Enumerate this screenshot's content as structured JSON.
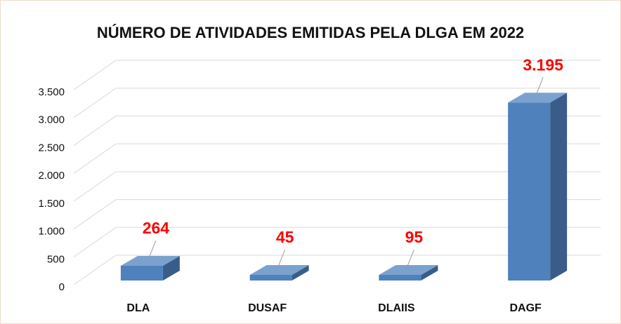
{
  "chart_data": {
    "type": "bar3d",
    "title": "NÚMERO DE ATIVIDADES EMITIDAS PELA DLGA EM 2022",
    "categories": [
      "DLA",
      "DUSAF",
      "DLAIIS",
      "DAGF"
    ],
    "values": [
      264,
      45,
      95,
      3195
    ],
    "value_labels": [
      "264",
      "45",
      "95",
      "3.195"
    ],
    "color": "#4f81bd",
    "label_color": "#ff0000",
    "ylim": [
      0,
      3500
    ],
    "yticks": [
      0,
      {
        "value": 500,
        "label": "500"
      },
      {
        "value": 1000,
        "label": "1.000"
      },
      {
        "value": 1500,
        "label": "1.500"
      },
      {
        "value": 2000,
        "label": "2.000"
      },
      {
        "value": 2500,
        "label": "2.500"
      },
      {
        "value": 3000,
        "label": "3.000"
      },
      {
        "value": 3500,
        "label": "3.500"
      }
    ],
    "grid": true
  }
}
